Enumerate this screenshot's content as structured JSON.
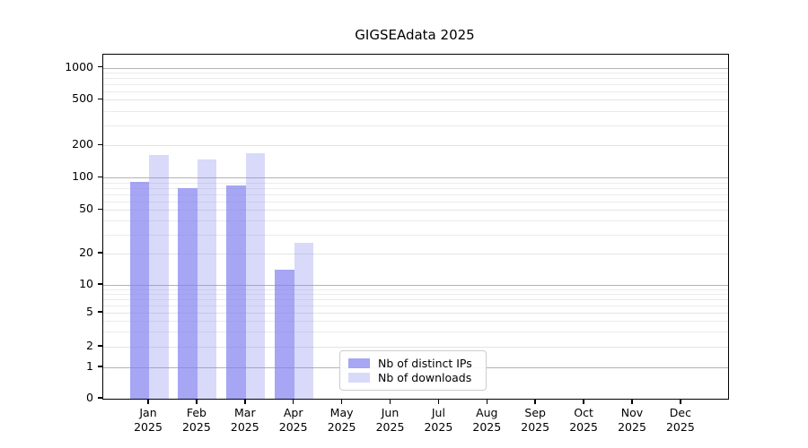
{
  "title": "GIGSEAdata 2025",
  "chart_data": {
    "type": "bar",
    "title": "GIGSEAdata 2025",
    "categories": [
      "Jan",
      "Feb",
      "Mar",
      "Apr",
      "May",
      "Jun",
      "Jul",
      "Aug",
      "Sep",
      "Oct",
      "Nov",
      "Dec"
    ],
    "year_label": "2025",
    "series": [
      {
        "name": "Nb of distinct IPs",
        "color": "#8080f0",
        "alpha": 0.7,
        "values": [
          92,
          80,
          85,
          14,
          null,
          null,
          null,
          null,
          null,
          null,
          null,
          null
        ]
      },
      {
        "name": "Nb of downloads",
        "color": "#8080f0",
        "alpha": 0.3,
        "values": [
          163,
          148,
          170,
          25,
          null,
          null,
          null,
          null,
          null,
          null,
          null,
          null
        ]
      }
    ],
    "y_axis": {
      "scale": "symlog",
      "ticks": [
        0,
        1,
        2,
        5,
        10,
        20,
        50,
        100,
        200,
        500,
        1000
      ],
      "tick_labels": [
        "0",
        "1",
        "2",
        "5",
        "10",
        "20",
        "50",
        "100",
        "200",
        "500",
        "1000"
      ],
      "dark_grid_values": [
        1,
        10,
        100,
        1000
      ],
      "light_grid_values": [
        2,
        5,
        20,
        50,
        200,
        500
      ],
      "minor_grid_values": [
        3,
        4,
        6,
        7,
        8,
        9,
        30,
        40,
        60,
        70,
        80,
        90,
        300,
        400,
        600,
        700,
        800,
        900
      ]
    },
    "x_axis": {
      "label_year": "2025"
    },
    "grid": {
      "major_color": "#b3b3b3",
      "minor_color": "#ebebeb",
      "on": true
    },
    "legend": {
      "position": "lower center-left inside plot",
      "entries": [
        "Nb of distinct IPs",
        "Nb of downloads"
      ]
    },
    "colors": {
      "bar_base": "#8080f0",
      "spine": "#000000",
      "background": "#ffffff"
    }
  }
}
